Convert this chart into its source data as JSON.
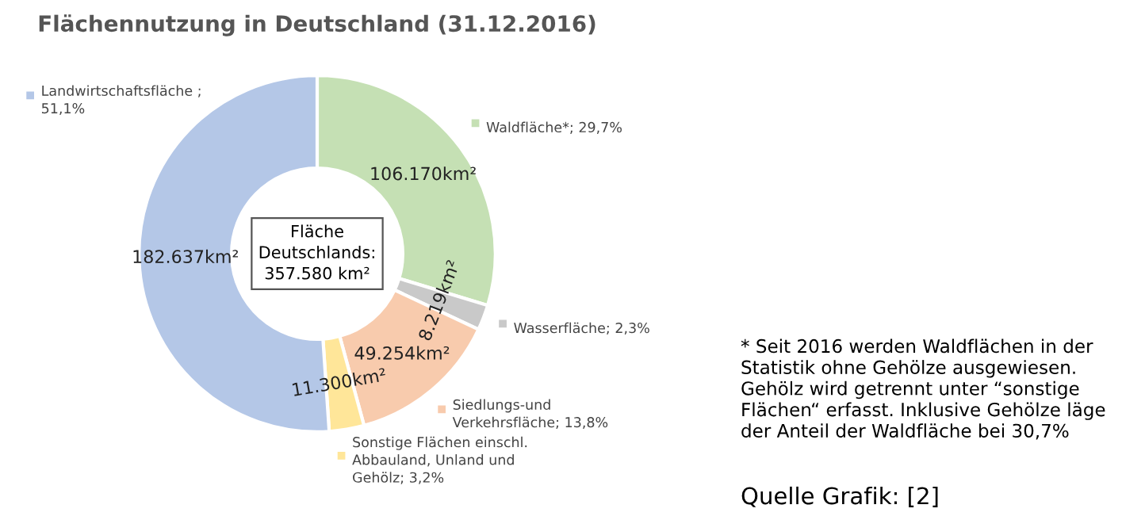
{
  "chart_data": {
    "type": "donut",
    "title": "Flächennutzung in Deutschland (31.12.2016)",
    "categories": [
      "Waldfläche*; 29,7%",
      "Wasserfläche; 2,3%",
      "Siedlungs-und\nVerkehrsfläche; 13,8%",
      "Sonstige Flächen einschl.\nAbbauland, Unland und\nGehölz; 3,2%",
      "Landwirtschaftsfläche ;\n51,1%"
    ],
    "values": [
      106170,
      8219,
      49254,
      11300,
      182637
    ],
    "colors": [
      "#c5e0b4",
      "#c9c9c9",
      "#f8cbad",
      "#ffe699",
      "#b4c7e7"
    ],
    "value_labels": [
      "106.170km²",
      "8.219km²",
      "49.254km²",
      "11.300km²",
      "182.637km²"
    ],
    "annotations": [
      "Fläche\nDeutschlands:\n357.580 km²",
      "* Seit 2016 werden Waldflächen in der\nStatistik ohne Gehölze ausgewiesen.\nGehölz wird getrennt unter “sonstige\nFlächen“ erfasst. Inklusive Gehölze läge\nder Anteil der Waldfläche bei 30,7%",
      "Quelle Grafik: [2]"
    ],
    "legend": "right"
  }
}
